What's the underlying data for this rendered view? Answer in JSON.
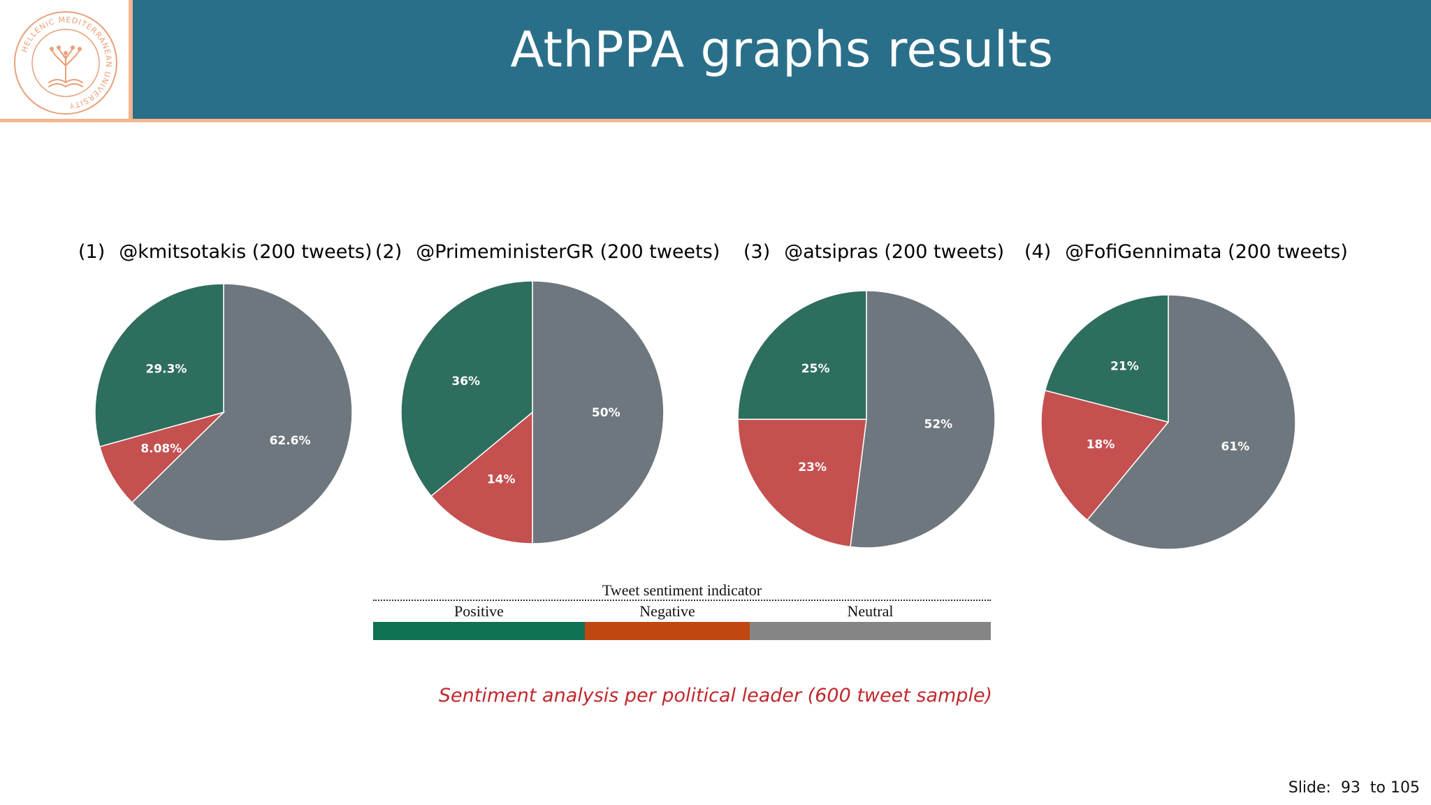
{
  "slide_title": "AthPPA graphs results",
  "logo": {
    "ring_text": "HELLENIC MEDITERRANEAN UNIVERSITY",
    "accent": "#e8a07a"
  },
  "colors": {
    "header_band": "#2a6f8a",
    "header_accent_line": "#f4b48f",
    "positive": "#2e6e5e",
    "negative": "#c55050",
    "neutral": "#6e777d",
    "caption": "#c0282d"
  },
  "charts_labels": [
    {
      "num": "(1)",
      "handle": "@kmitsotakis (200 tweets)"
    },
    {
      "num": "(2)",
      "handle": "@PrimeministerGR (200 tweets)"
    },
    {
      "num": "(3)",
      "handle": "@atsipras (200 tweets)"
    },
    {
      "num": "(4)",
      "handle": "@FofiGennimata (200 tweets)"
    }
  ],
  "chart_data": [
    {
      "type": "pie",
      "title": "@kmitsotakis (200 tweets)",
      "labels": [
        "Neutral",
        "Negative",
        "Positive"
      ],
      "values": [
        62.6,
        8.08,
        29.3
      ],
      "value_labels": [
        "62.6%",
        "8.08%",
        "29.3%"
      ],
      "colors": [
        "#6e777d",
        "#c55050",
        "#2e6e5e"
      ]
    },
    {
      "type": "pie",
      "title": "@PrimeministerGR (200 tweets)",
      "labels": [
        "Neutral",
        "Negative",
        "Positive"
      ],
      "values": [
        50,
        14,
        36
      ],
      "value_labels": [
        "50%",
        "14%",
        "36%"
      ],
      "colors": [
        "#6e777d",
        "#c55050",
        "#2e6e5e"
      ]
    },
    {
      "type": "pie",
      "title": "@atsipras (200 tweets)",
      "labels": [
        "Neutral",
        "Negative",
        "Positive"
      ],
      "values": [
        52,
        23,
        25
      ],
      "value_labels": [
        "52%",
        "23%",
        "25%"
      ],
      "colors": [
        "#6e777d",
        "#c55050",
        "#2e6e5e"
      ]
    },
    {
      "type": "pie",
      "title": "@FofiGennimata (200 tweets)",
      "labels": [
        "Neutral",
        "Negative",
        "Positive"
      ],
      "values": [
        61,
        18,
        21
      ],
      "value_labels": [
        "61%",
        "18%",
        "21%"
      ],
      "colors": [
        "#6e777d",
        "#c55050",
        "#2e6e5e"
      ]
    }
  ],
  "legend": {
    "title": "Tweet sentiment indicator",
    "items": [
      {
        "label": "Positive",
        "color": "#0f7153"
      },
      {
        "label": "Negative",
        "color": "#c0470f"
      },
      {
        "label": "Neutral",
        "color": "#858585"
      }
    ]
  },
  "caption": "Sentiment analysis per political leader (600 tweet sample)",
  "footer": {
    "slide_text": "Slide:  93  to 105"
  }
}
